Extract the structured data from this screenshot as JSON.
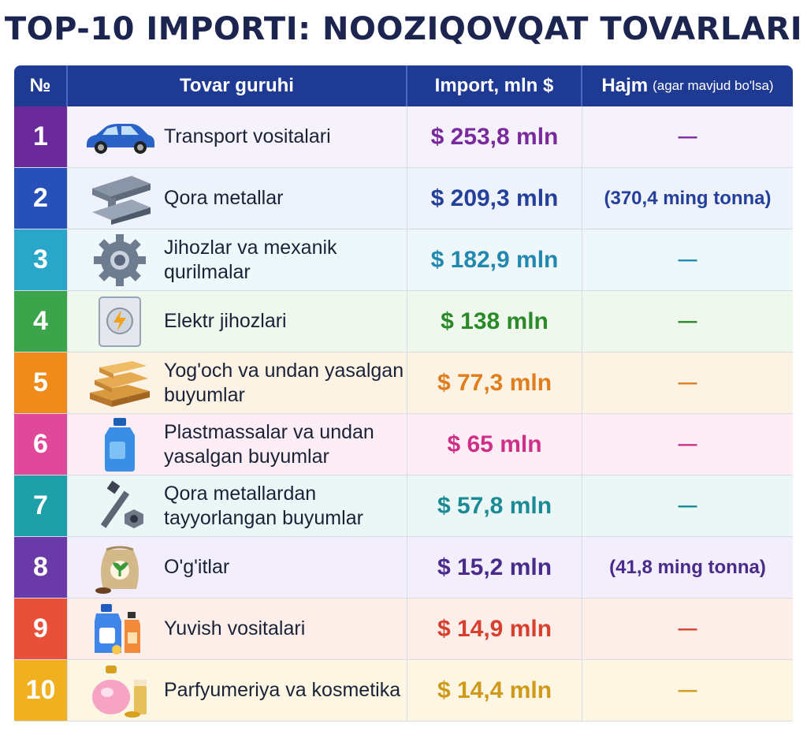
{
  "title": "TOP-10 IMPORTI: NOOZIQOVQAT TOVARLARI",
  "header": {
    "num": "№",
    "name": "Tovar guruhi",
    "import": "Import, mln $",
    "volume": "Hajm",
    "volume_note": "(agar mavjud bo'lsa)"
  },
  "rows": [
    {
      "num": "1",
      "label": "Transport vositalari",
      "import": "$ 253,8 mln",
      "volume": "—",
      "icon": "car-icon",
      "num_color": "#6a2a9a",
      "bg": "#f5f2fb",
      "text_color": "#7a2a9c"
    },
    {
      "num": "2",
      "label": "Qora metallar",
      "import": "$ 209,3 mln",
      "volume": "(370,4 ming tonna)",
      "icon": "steel-beam-icon",
      "num_color": "#2750b8",
      "bg": "#eef2fb",
      "text_color": "#24409a"
    },
    {
      "num": "3",
      "label": "Jihozlar va mexanik qurilmalar",
      "import": "$ 182,9 mln",
      "volume": "—",
      "icon": "gear-icon",
      "num_color": "#2aa6c8",
      "bg": "#eef8fb",
      "text_color": "#2388b0"
    },
    {
      "num": "4",
      "label": "Elektr jihozlari",
      "import": "$ 138 mln",
      "volume": "—",
      "icon": "electric-appliance-icon",
      "num_color": "#3ca44a",
      "bg": "#eef8ec",
      "text_color": "#2a8a2a"
    },
    {
      "num": "5",
      "label": "Yog'och va undan yasalgan buyumlar",
      "import": "$ 77,3 mln",
      "volume": "—",
      "icon": "wood-planks-icon",
      "num_color": "#f08a1a",
      "bg": "#fdf3e4",
      "text_color": "#e07d1c"
    },
    {
      "num": "6",
      "label": "Plastmassalar va undan yasalgan buyumlar",
      "import": "$ 65 mln",
      "volume": "—",
      "icon": "plastic-bottle-icon",
      "num_color": "#e0489a",
      "bg": "#fdeef5",
      "text_color": "#cf2f88"
    },
    {
      "num": "7",
      "label": "Qora metallardan tayyorlangan buyumlar",
      "import": "$ 57,8 mln",
      "volume": "—",
      "icon": "bolt-nut-icon",
      "num_color": "#1ea0a8",
      "bg": "#ebf7f7",
      "text_color": "#1a8a94"
    },
    {
      "num": "8",
      "label": "O'g'itlar",
      "import": "$ 15,2 mln",
      "volume": "(41,8 ming tonna)",
      "icon": "fertilizer-bag-icon",
      "num_color": "#6a3aa8",
      "bg": "#f2eefb",
      "text_color": "#4a2a8a"
    },
    {
      "num": "9",
      "label": "Yuvish vositalari",
      "import": "$ 14,9 mln",
      "volume": "—",
      "icon": "detergent-icon",
      "num_color": "#e8503a",
      "bg": "#fdeeea",
      "text_color": "#d8402e"
    },
    {
      "num": "10",
      "label": "Parfyumeriya va kosmetika",
      "import": "$ 14,4 mln",
      "volume": "—",
      "icon": "perfume-icon",
      "num_color": "#f0b020",
      "bg": "#fdf6e2",
      "text_color": "#cf9a1a"
    }
  ]
}
